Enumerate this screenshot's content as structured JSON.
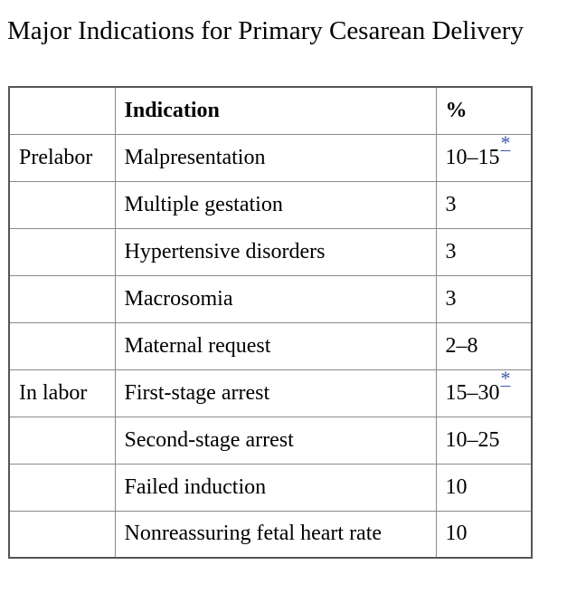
{
  "title": "Major Indications for Primary Cesarean Delivery",
  "table": {
    "headers": [
      "",
      "Indication",
      "%"
    ],
    "rows": [
      {
        "group": "Prelabor",
        "indication": "Malpresentation",
        "percent": "10–15",
        "footnote": "*"
      },
      {
        "group": "",
        "indication": "Multiple gestation",
        "percent": "3",
        "footnote": ""
      },
      {
        "group": "",
        "indication": "Hypertensive disorders",
        "percent": "3",
        "footnote": ""
      },
      {
        "group": "",
        "indication": "Macrosomia",
        "percent": "3",
        "footnote": ""
      },
      {
        "group": "",
        "indication": "Maternal request",
        "percent": "2–8",
        "footnote": ""
      },
      {
        "group": "In labor",
        "indication": "First-stage arrest",
        "percent": "15–30",
        "footnote": "*"
      },
      {
        "group": "",
        "indication": "Second-stage arrest",
        "percent": "10–25",
        "footnote": ""
      },
      {
        "group": "",
        "indication": "Failed induction",
        "percent": "10",
        "footnote": ""
      },
      {
        "group": "",
        "indication": "Nonreassuring fetal heart rate",
        "percent": "10",
        "footnote": ""
      }
    ]
  },
  "colors": {
    "footnote_link": "#3b5ba6",
    "border": "#8a8a8a"
  }
}
